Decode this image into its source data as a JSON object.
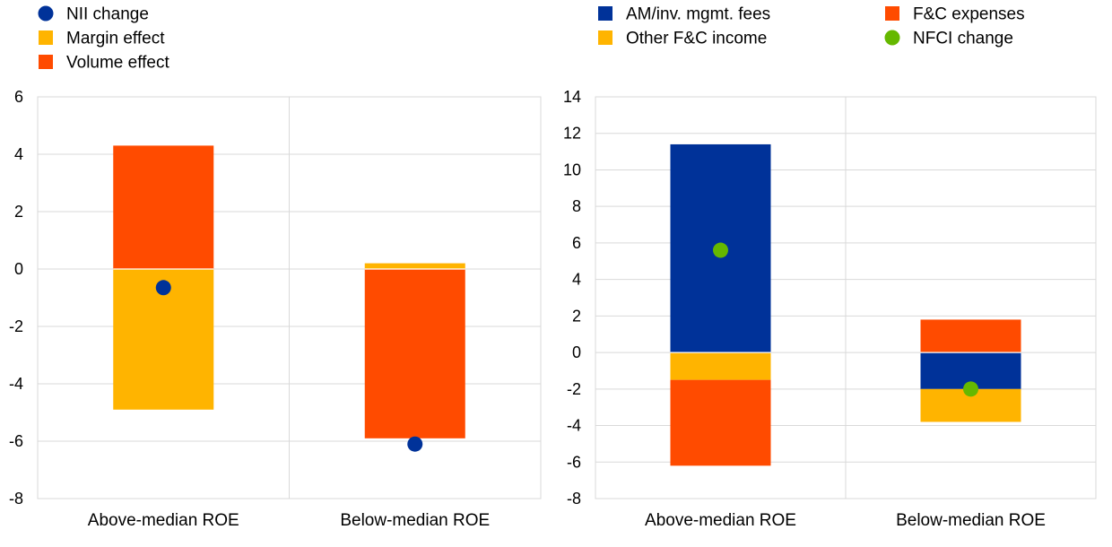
{
  "chart_data": [
    {
      "type": "bar",
      "stacked": true,
      "title": "",
      "xlabel": "",
      "ylabel": "",
      "ylim": [
        -8,
        6
      ],
      "yticks": [
        6,
        4,
        2,
        0,
        -2,
        -4,
        -6,
        -8
      ],
      "grid": true,
      "legend_position": "top-left",
      "categories": [
        "Above-median ROE",
        "Below-median ROE"
      ],
      "series": [
        {
          "name": "Margin effect",
          "kind": "bar",
          "color": "#ffb400",
          "values": [
            -4.9,
            0.2
          ]
        },
        {
          "name": "Volume effect",
          "kind": "bar",
          "color": "#ff4b00",
          "values": [
            4.3,
            -5.9
          ]
        },
        {
          "name": "NII change",
          "kind": "point",
          "color": "#003299",
          "values": [
            -0.65,
            -6.1
          ]
        }
      ],
      "legend": [
        {
          "name": "NII change",
          "marker": "circle",
          "color": "#003299"
        },
        {
          "name": "Margin effect",
          "marker": "square",
          "color": "#ffb400"
        },
        {
          "name": "Volume effect",
          "marker": "square",
          "color": "#ff4b00"
        }
      ]
    },
    {
      "type": "bar",
      "stacked": true,
      "title": "",
      "xlabel": "",
      "ylabel": "",
      "ylim": [
        -8,
        14
      ],
      "yticks": [
        14,
        12,
        10,
        8,
        6,
        4,
        2,
        0,
        -2,
        -4,
        -6,
        -8
      ],
      "grid": true,
      "legend_position": "top",
      "categories": [
        "Above-median ROE",
        "Below-median ROE"
      ],
      "series": [
        {
          "name": "AM/inv. mgmt. fees",
          "kind": "bar",
          "color": "#003299",
          "values": [
            11.4,
            -2.0
          ]
        },
        {
          "name": "Other F&C income",
          "kind": "bar",
          "color": "#ffb400",
          "values": [
            -1.5,
            -1.8
          ]
        },
        {
          "name": "F&C expenses",
          "kind": "bar",
          "color": "#ff4b00",
          "values": [
            -4.7,
            1.8
          ]
        },
        {
          "name": "NFCI change",
          "kind": "point",
          "color": "#65b800",
          "values": [
            5.6,
            -2.0
          ]
        }
      ],
      "legend": [
        {
          "name": "AM/inv. mgmt. fees",
          "marker": "square",
          "color": "#003299"
        },
        {
          "name": "Other F&C income",
          "marker": "square",
          "color": "#ffb400"
        },
        {
          "name": "F&C expenses",
          "marker": "square",
          "color": "#ff4b00"
        },
        {
          "name": "NFCI change",
          "marker": "circle",
          "color": "#65b800"
        }
      ]
    }
  ]
}
